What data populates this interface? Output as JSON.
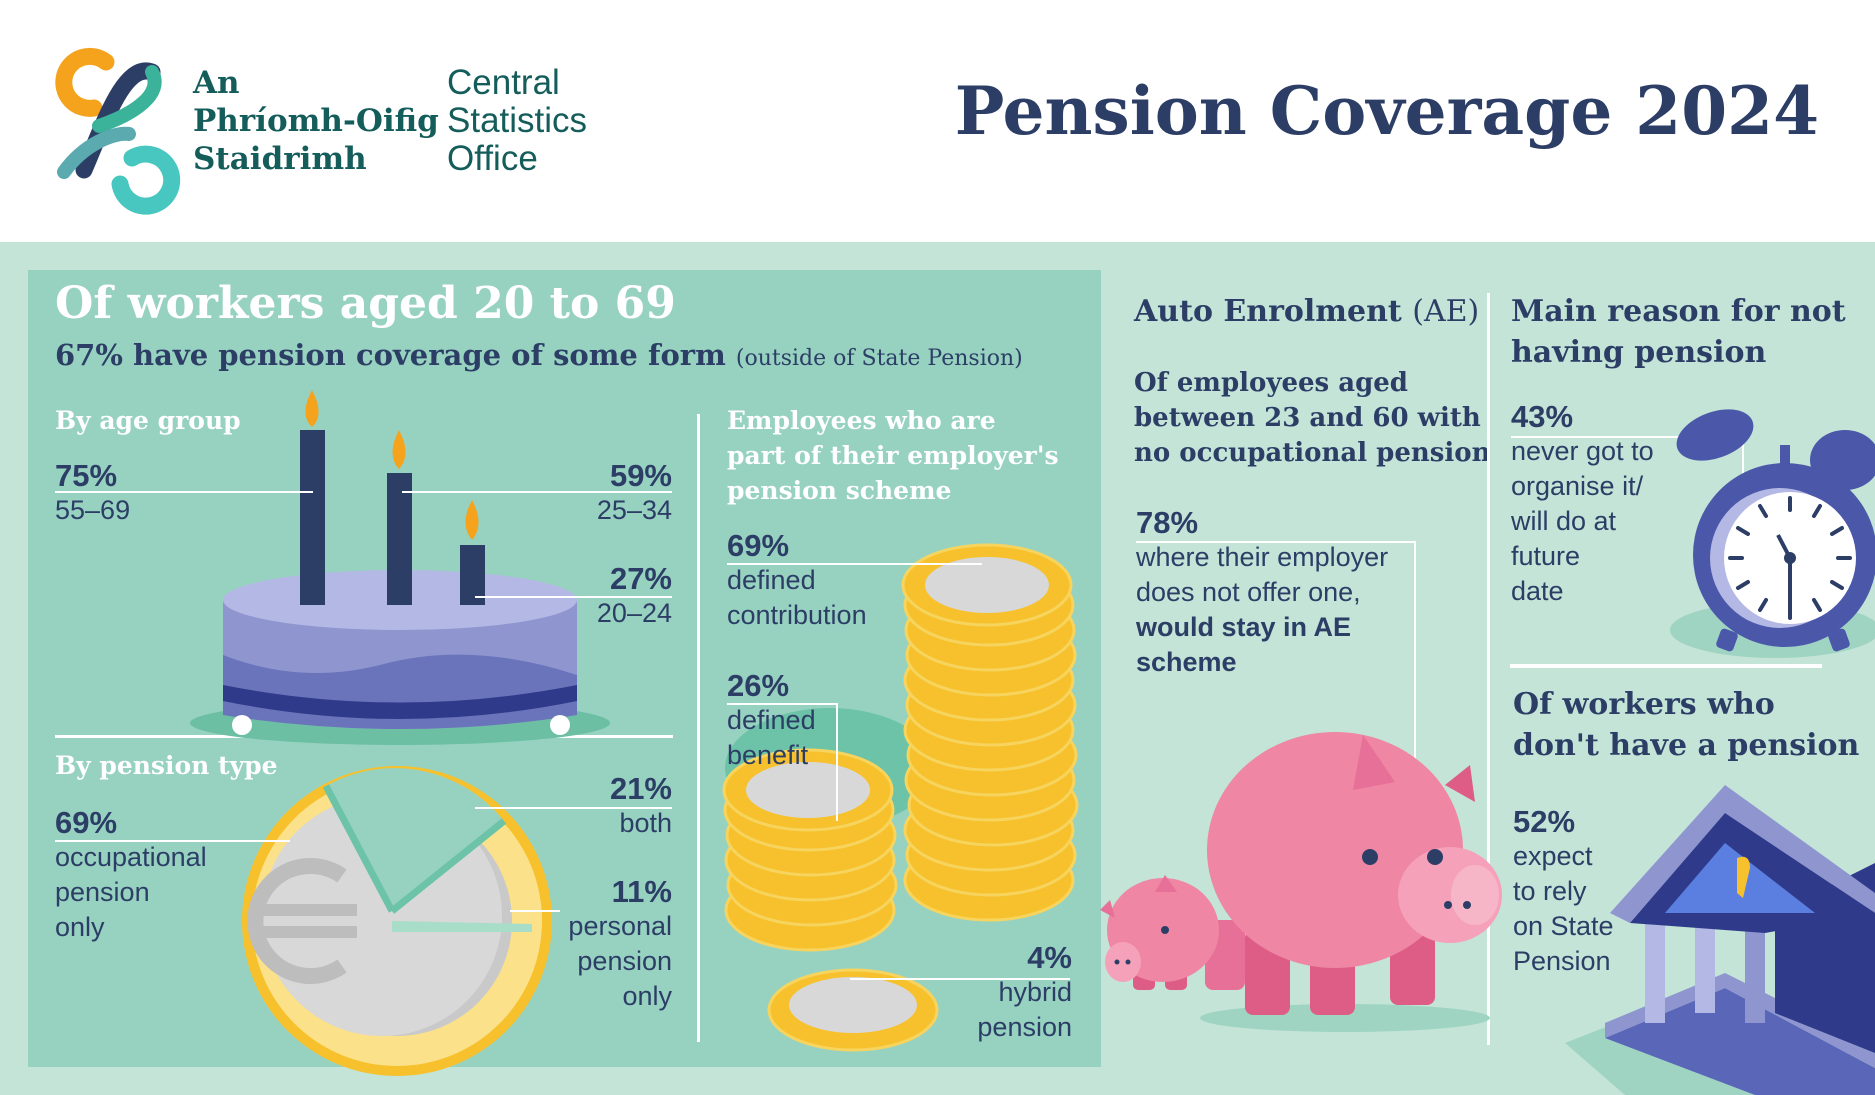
{
  "colors": {
    "navy": "#2c3e66",
    "teal_dark": "#155d5b",
    "band": "#c3e4d7",
    "panel": "#97d2c1",
    "gold": "#f6c12c",
    "silver": "#cfcfcf",
    "pink": "#ee86a4",
    "lavender": "#8f96cf",
    "orange": "#f5a21c",
    "aqua": "#48c6c0"
  },
  "header": {
    "logo_irish": [
      "An",
      "Phríomh-Oifig",
      "Staidrimh"
    ],
    "logo_english": [
      "Central",
      "Statistics",
      "Office"
    ],
    "title": "Pension Coverage 2024"
  },
  "left_panel": {
    "heading": "Of workers aged 20 to 69",
    "subheading": "67% have pension coverage of some form",
    "subheading_note": "(outside of State Pension)",
    "by_age": {
      "title": "By age group",
      "items": [
        {
          "pct": "75%",
          "label": "55–69"
        },
        {
          "pct": "59%",
          "label": "25–34"
        },
        {
          "pct": "27%",
          "label": "20–24"
        }
      ]
    },
    "by_type": {
      "title": "By pension type",
      "items": [
        {
          "pct": "69%",
          "label": [
            "occupational",
            "pension",
            "only"
          ]
        },
        {
          "pct": "21%",
          "label": [
            "both"
          ]
        },
        {
          "pct": "11%",
          "label": [
            "personal",
            "pension",
            "only"
          ]
        }
      ]
    },
    "employer_scheme": {
      "title": [
        "Employees who are",
        "part of their employer's",
        "pension scheme"
      ],
      "items": [
        {
          "pct": "69%",
          "label": [
            "defined",
            "contribution"
          ]
        },
        {
          "pct": "26%",
          "label": [
            "defined",
            "benefit"
          ]
        },
        {
          "pct": "4%",
          "label": [
            "hybrid",
            "pension"
          ]
        }
      ]
    }
  },
  "auto_enrolment": {
    "title": "Auto Enrolment",
    "title_abbr": "(AE)",
    "subtitle": [
      "Of employees aged",
      "between 23 and 60 with",
      "no occupational pension"
    ],
    "pct": "78%",
    "text": [
      "where their employer",
      "does not offer one,"
    ],
    "text_bold": [
      "would stay in AE",
      "scheme"
    ]
  },
  "main_reason": {
    "title": [
      "Main reason for not",
      "having pension"
    ],
    "pct": "43%",
    "text": [
      "never got to",
      "organise it/",
      "will do at",
      "future",
      "date"
    ]
  },
  "no_pension": {
    "title": [
      "Of workers who",
      "don't have a pension"
    ],
    "pct": "52%",
    "text": [
      "expect",
      "to rely",
      "on State",
      "Pension"
    ]
  },
  "icons": [
    "cso-logo",
    "cake-icon",
    "euro-coin-icon",
    "coin-stack-icon",
    "piggy-bank-icon",
    "alarm-clock-icon",
    "government-building-icon",
    "harp-icon"
  ]
}
